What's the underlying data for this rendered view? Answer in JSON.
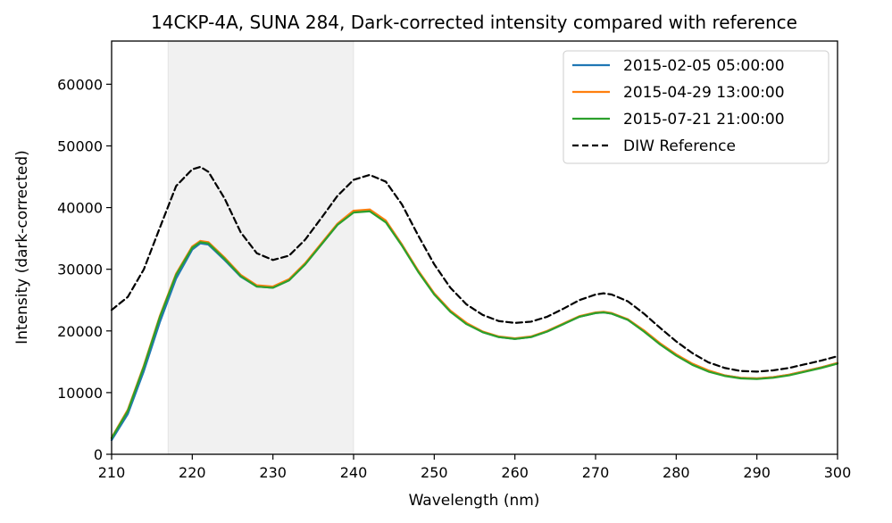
{
  "chart_data": {
    "type": "line",
    "title": "14CKP-4A, SUNA 284, Dark-corrected intensity compared with reference",
    "xlabel": "Wavelength (nm)",
    "ylabel": "Intensity (dark-corrected)",
    "xlim": [
      210,
      300
    ],
    "ylim": [
      0,
      67000
    ],
    "xticks": [
      210,
      220,
      230,
      240,
      250,
      260,
      270,
      280,
      290,
      300
    ],
    "yticks": [
      0,
      10000,
      20000,
      30000,
      40000,
      50000,
      60000
    ],
    "shaded_region": [
      217,
      240
    ],
    "grid": false,
    "legend_position": "top-right",
    "x": [
      210,
      212,
      214,
      216,
      218,
      220,
      221,
      222,
      224,
      226,
      228,
      230,
      232,
      234,
      236,
      238,
      240,
      242,
      244,
      246,
      248,
      250,
      252,
      254,
      256,
      258,
      260,
      262,
      264,
      266,
      268,
      270,
      271,
      272,
      274,
      276,
      278,
      280,
      282,
      284,
      286,
      288,
      290,
      292,
      294,
      296,
      298,
      300
    ],
    "series": [
      {
        "name": "2015-02-05 05:00:00",
        "color": "#1f77b4",
        "style": "solid",
        "values": [
          2300,
          6500,
          13500,
          21500,
          28500,
          33200,
          34200,
          34000,
          31500,
          28800,
          27200,
          27000,
          28200,
          30800,
          34000,
          37200,
          39300,
          39600,
          37800,
          34000,
          29700,
          26000,
          23200,
          21200,
          19800,
          19000,
          18700,
          19000,
          19900,
          21100,
          22300,
          22900,
          23000,
          22800,
          21800,
          20000,
          17900,
          16100,
          14600,
          13500,
          12800,
          12400,
          12300,
          12500,
          12900,
          13500,
          14100,
          14800
        ]
      },
      {
        "name": "2015-04-29 13:00:00",
        "color": "#ff7f0e",
        "style": "solid",
        "values": [
          2700,
          7200,
          14400,
          22500,
          29300,
          33700,
          34600,
          34400,
          31900,
          29100,
          27400,
          27200,
          28400,
          31000,
          34200,
          37400,
          39500,
          39700,
          37900,
          34000,
          29800,
          26100,
          23300,
          21300,
          19900,
          19100,
          18800,
          19100,
          20000,
          21200,
          22400,
          23000,
          23100,
          22900,
          21900,
          20100,
          18000,
          16200,
          14700,
          13600,
          12800,
          12400,
          12300,
          12500,
          12900,
          13500,
          14100,
          14800
        ]
      },
      {
        "name": "2015-07-21 21:00:00",
        "color": "#2ca02c",
        "style": "solid",
        "values": [
          2600,
          7000,
          14200,
          22300,
          29100,
          33500,
          34400,
          34200,
          31700,
          28900,
          27200,
          27000,
          28200,
          30800,
          34000,
          37200,
          39200,
          39400,
          37600,
          33800,
          29600,
          25900,
          23100,
          21100,
          19800,
          19000,
          18700,
          19000,
          19900,
          21100,
          22300,
          22900,
          23000,
          22800,
          21800,
          19900,
          17800,
          16000,
          14500,
          13400,
          12700,
          12300,
          12200,
          12400,
          12800,
          13400,
          14000,
          14700
        ]
      },
      {
        "name": "DIW Reference",
        "color": "#000000",
        "style": "dashed",
        "values": [
          23400,
          25500,
          30000,
          36800,
          43500,
          46200,
          46600,
          45800,
          41500,
          36000,
          32600,
          31500,
          32200,
          34800,
          38300,
          41900,
          44500,
          45300,
          44200,
          40500,
          35500,
          30800,
          27000,
          24300,
          22600,
          21600,
          21300,
          21500,
          22300,
          23600,
          25000,
          25900,
          26100,
          25900,
          24800,
          22800,
          20500,
          18300,
          16400,
          14900,
          14000,
          13500,
          13400,
          13600,
          14000,
          14600,
          15200,
          15900
        ]
      }
    ]
  }
}
